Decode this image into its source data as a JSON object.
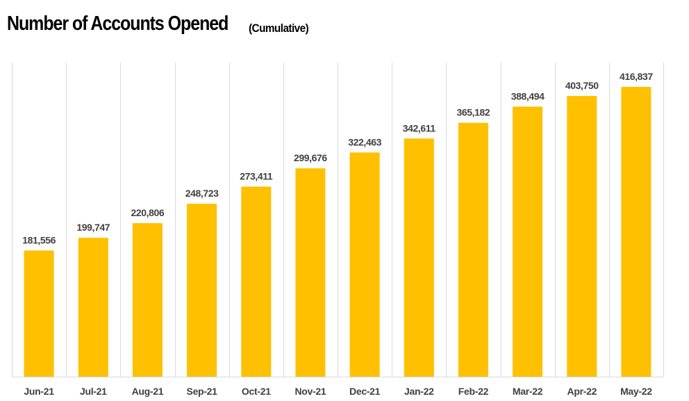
{
  "title": "Number of Accounts Opened",
  "subtitle": "(Cumulative)",
  "colors": {
    "bar": "#FFC000",
    "label": "#404040",
    "grid": "#D9D9D9",
    "title": "#000000"
  },
  "chart_data": {
    "type": "bar",
    "title": "Number of Accounts Opened",
    "subtitle": "(Cumulative)",
    "categories": [
      "Jun-21",
      "Jul-21",
      "Aug-21",
      "Sep-21",
      "Oct-21",
      "Nov-21",
      "Dec-21",
      "Jan-22",
      "Feb-22",
      "Mar-22",
      "Apr-22",
      "May-22"
    ],
    "values": [
      181556,
      199747,
      220806,
      248723,
      273411,
      299676,
      322463,
      342611,
      365182,
      388494,
      403750,
      416837
    ],
    "value_labels": [
      "181,556",
      "199,747",
      "220,806",
      "248,723",
      "273,411",
      "299,676",
      "322,463",
      "342,611",
      "365,182",
      "388,494",
      "403,750",
      "416,837"
    ],
    "ylim": [
      0,
      450000
    ],
    "grid": "vertical category separators",
    "legend": "none",
    "data_labels": true
  }
}
